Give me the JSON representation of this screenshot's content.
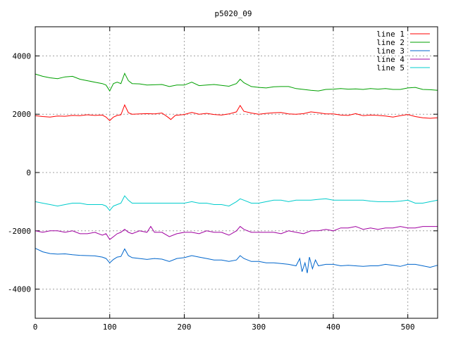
{
  "chart_data": {
    "type": "line",
    "title": "p5020_09",
    "xlabel": "",
    "ylabel": "",
    "xlim": [
      0,
      540
    ],
    "ylim": [
      -5000,
      5000
    ],
    "x_ticks": [
      0,
      100,
      200,
      300,
      400,
      500
    ],
    "y_ticks": [
      -4000,
      -2000,
      0,
      2000,
      4000
    ],
    "grid": true,
    "legend_position": "top-right",
    "series": [
      {
        "name": "line 1",
        "color": "#ff0000",
        "points": [
          [
            0,
            1950
          ],
          [
            10,
            1920
          ],
          [
            20,
            1900
          ],
          [
            30,
            1940
          ],
          [
            40,
            1930
          ],
          [
            50,
            1960
          ],
          [
            60,
            1950
          ],
          [
            70,
            1980
          ],
          [
            80,
            1960
          ],
          [
            90,
            1970
          ],
          [
            95,
            1900
          ],
          [
            100,
            1780
          ],
          [
            105,
            1900
          ],
          [
            110,
            1960
          ],
          [
            115,
            1980
          ],
          [
            120,
            2320
          ],
          [
            125,
            2050
          ],
          [
            130,
            2000
          ],
          [
            140,
            2010
          ],
          [
            150,
            2020
          ],
          [
            160,
            2010
          ],
          [
            170,
            2040
          ],
          [
            178,
            1900
          ],
          [
            182,
            1820
          ],
          [
            188,
            1960
          ],
          [
            200,
            1990
          ],
          [
            210,
            2060
          ],
          [
            220,
            2000
          ],
          [
            230,
            2030
          ],
          [
            240,
            1990
          ],
          [
            250,
            1970
          ],
          [
            260,
            2010
          ],
          [
            270,
            2080
          ],
          [
            275,
            2300
          ],
          [
            280,
            2100
          ],
          [
            290,
            2040
          ],
          [
            300,
            2000
          ],
          [
            310,
            2030
          ],
          [
            320,
            2050
          ],
          [
            330,
            2060
          ],
          [
            340,
            2010
          ],
          [
            350,
            2000
          ],
          [
            360,
            2020
          ],
          [
            370,
            2080
          ],
          [
            380,
            2050
          ],
          [
            390,
            2010
          ],
          [
            400,
            2010
          ],
          [
            410,
            1970
          ],
          [
            420,
            1960
          ],
          [
            430,
            2020
          ],
          [
            440,
            1950
          ],
          [
            450,
            1970
          ],
          [
            460,
            1960
          ],
          [
            470,
            1940
          ],
          [
            480,
            1900
          ],
          [
            490,
            1950
          ],
          [
            500,
            1990
          ],
          [
            510,
            1920
          ],
          [
            520,
            1880
          ],
          [
            530,
            1860
          ],
          [
            540,
            1880
          ]
        ]
      },
      {
        "name": "line 2",
        "color": "#00a000",
        "points": [
          [
            0,
            3380
          ],
          [
            10,
            3300
          ],
          [
            20,
            3250
          ],
          [
            30,
            3220
          ],
          [
            40,
            3280
          ],
          [
            50,
            3300
          ],
          [
            60,
            3200
          ],
          [
            70,
            3150
          ],
          [
            80,
            3100
          ],
          [
            90,
            3050
          ],
          [
            95,
            3000
          ],
          [
            100,
            2800
          ],
          [
            105,
            3050
          ],
          [
            110,
            3100
          ],
          [
            115,
            3050
          ],
          [
            120,
            3400
          ],
          [
            125,
            3150
          ],
          [
            130,
            3050
          ],
          [
            140,
            3040
          ],
          [
            150,
            3000
          ],
          [
            160,
            3010
          ],
          [
            170,
            3020
          ],
          [
            180,
            2950
          ],
          [
            190,
            3000
          ],
          [
            200,
            3000
          ],
          [
            210,
            3100
          ],
          [
            220,
            2980
          ],
          [
            230,
            3000
          ],
          [
            240,
            3020
          ],
          [
            250,
            2990
          ],
          [
            260,
            2960
          ],
          [
            270,
            3050
          ],
          [
            275,
            3200
          ],
          [
            280,
            3080
          ],
          [
            290,
            2950
          ],
          [
            300,
            2920
          ],
          [
            310,
            2900
          ],
          [
            320,
            2940
          ],
          [
            330,
            2950
          ],
          [
            340,
            2950
          ],
          [
            350,
            2880
          ],
          [
            360,
            2850
          ],
          [
            370,
            2820
          ],
          [
            380,
            2800
          ],
          [
            390,
            2850
          ],
          [
            400,
            2860
          ],
          [
            410,
            2880
          ],
          [
            420,
            2860
          ],
          [
            430,
            2870
          ],
          [
            440,
            2850
          ],
          [
            450,
            2880
          ],
          [
            460,
            2860
          ],
          [
            470,
            2880
          ],
          [
            480,
            2850
          ],
          [
            490,
            2850
          ],
          [
            500,
            2900
          ],
          [
            510,
            2920
          ],
          [
            520,
            2850
          ],
          [
            530,
            2840
          ],
          [
            540,
            2820
          ]
        ]
      },
      {
        "name": "line 3",
        "color": "#0066cc",
        "points": [
          [
            0,
            -2600
          ],
          [
            10,
            -2720
          ],
          [
            20,
            -2780
          ],
          [
            30,
            -2800
          ],
          [
            40,
            -2790
          ],
          [
            50,
            -2820
          ],
          [
            60,
            -2840
          ],
          [
            70,
            -2850
          ],
          [
            80,
            -2860
          ],
          [
            90,
            -2900
          ],
          [
            95,
            -2950
          ],
          [
            100,
            -3100
          ],
          [
            105,
            -2980
          ],
          [
            110,
            -2900
          ],
          [
            115,
            -2880
          ],
          [
            120,
            -2620
          ],
          [
            125,
            -2850
          ],
          [
            130,
            -2920
          ],
          [
            140,
            -2950
          ],
          [
            150,
            -2980
          ],
          [
            160,
            -2950
          ],
          [
            170,
            -2970
          ],
          [
            180,
            -3050
          ],
          [
            190,
            -2950
          ],
          [
            200,
            -2920
          ],
          [
            210,
            -2850
          ],
          [
            220,
            -2900
          ],
          [
            230,
            -2950
          ],
          [
            240,
            -3000
          ],
          [
            250,
            -3000
          ],
          [
            260,
            -3050
          ],
          [
            270,
            -3000
          ],
          [
            275,
            -2850
          ],
          [
            280,
            -2950
          ],
          [
            290,
            -3050
          ],
          [
            300,
            -3050
          ],
          [
            310,
            -3100
          ],
          [
            320,
            -3100
          ],
          [
            330,
            -3120
          ],
          [
            340,
            -3150
          ],
          [
            350,
            -3200
          ],
          [
            355,
            -2950
          ],
          [
            358,
            -3400
          ],
          [
            362,
            -3100
          ],
          [
            365,
            -3450
          ],
          [
            368,
            -2900
          ],
          [
            372,
            -3300
          ],
          [
            376,
            -3000
          ],
          [
            380,
            -3200
          ],
          [
            390,
            -3150
          ],
          [
            400,
            -3150
          ],
          [
            410,
            -3200
          ],
          [
            420,
            -3180
          ],
          [
            430,
            -3200
          ],
          [
            440,
            -3220
          ],
          [
            450,
            -3200
          ],
          [
            460,
            -3200
          ],
          [
            470,
            -3150
          ],
          [
            480,
            -3180
          ],
          [
            490,
            -3220
          ],
          [
            500,
            -3150
          ],
          [
            510,
            -3150
          ],
          [
            520,
            -3200
          ],
          [
            530,
            -3250
          ],
          [
            540,
            -3180
          ]
        ]
      },
      {
        "name": "line 4",
        "color": "#a000a0",
        "points": [
          [
            0,
            -2000
          ],
          [
            10,
            -2050
          ],
          [
            20,
            -2000
          ],
          [
            30,
            -2000
          ],
          [
            40,
            -2050
          ],
          [
            50,
            -2000
          ],
          [
            60,
            -2100
          ],
          [
            70,
            -2100
          ],
          [
            80,
            -2050
          ],
          [
            90,
            -2150
          ],
          [
            95,
            -2100
          ],
          [
            100,
            -2300
          ],
          [
            105,
            -2200
          ],
          [
            110,
            -2100
          ],
          [
            115,
            -2050
          ],
          [
            120,
            -1950
          ],
          [
            125,
            -2050
          ],
          [
            130,
            -2100
          ],
          [
            140,
            -2000
          ],
          [
            150,
            -2050
          ],
          [
            155,
            -1850
          ],
          [
            160,
            -2050
          ],
          [
            170,
            -2050
          ],
          [
            180,
            -2200
          ],
          [
            190,
            -2100
          ],
          [
            200,
            -2050
          ],
          [
            210,
            -2050
          ],
          [
            220,
            -2100
          ],
          [
            230,
            -2000
          ],
          [
            240,
            -2050
          ],
          [
            250,
            -2050
          ],
          [
            260,
            -2150
          ],
          [
            270,
            -2000
          ],
          [
            275,
            -1850
          ],
          [
            280,
            -1950
          ],
          [
            290,
            -2050
          ],
          [
            300,
            -2050
          ],
          [
            310,
            -2050
          ],
          [
            320,
            -2050
          ],
          [
            330,
            -2100
          ],
          [
            340,
            -2000
          ],
          [
            350,
            -2050
          ],
          [
            360,
            -2100
          ],
          [
            370,
            -2000
          ],
          [
            380,
            -2000
          ],
          [
            390,
            -1950
          ],
          [
            400,
            -2000
          ],
          [
            410,
            -1900
          ],
          [
            420,
            -1900
          ],
          [
            430,
            -1850
          ],
          [
            440,
            -1950
          ],
          [
            450,
            -1900
          ],
          [
            460,
            -1950
          ],
          [
            470,
            -1900
          ],
          [
            480,
            -1900
          ],
          [
            490,
            -1850
          ],
          [
            500,
            -1900
          ],
          [
            510,
            -1900
          ],
          [
            520,
            -1850
          ],
          [
            530,
            -1850
          ],
          [
            540,
            -1850
          ]
        ]
      },
      {
        "name": "line 5",
        "color": "#00cccc",
        "points": [
          [
            0,
            -1000
          ],
          [
            10,
            -1050
          ],
          [
            20,
            -1100
          ],
          [
            30,
            -1150
          ],
          [
            40,
            -1100
          ],
          [
            50,
            -1050
          ],
          [
            60,
            -1050
          ],
          [
            70,
            -1100
          ],
          [
            80,
            -1100
          ],
          [
            90,
            -1100
          ],
          [
            95,
            -1150
          ],
          [
            100,
            -1300
          ],
          [
            105,
            -1150
          ],
          [
            110,
            -1100
          ],
          [
            115,
            -1050
          ],
          [
            120,
            -800
          ],
          [
            125,
            -950
          ],
          [
            130,
            -1050
          ],
          [
            140,
            -1050
          ],
          [
            150,
            -1050
          ],
          [
            160,
            -1050
          ],
          [
            170,
            -1050
          ],
          [
            180,
            -1050
          ],
          [
            190,
            -1050
          ],
          [
            200,
            -1050
          ],
          [
            210,
            -1000
          ],
          [
            220,
            -1050
          ],
          [
            230,
            -1050
          ],
          [
            240,
            -1100
          ],
          [
            250,
            -1100
          ],
          [
            260,
            -1150
          ],
          [
            270,
            -1000
          ],
          [
            275,
            -900
          ],
          [
            280,
            -950
          ],
          [
            290,
            -1050
          ],
          [
            300,
            -1050
          ],
          [
            310,
            -1000
          ],
          [
            320,
            -950
          ],
          [
            330,
            -950
          ],
          [
            340,
            -1000
          ],
          [
            350,
            -950
          ],
          [
            360,
            -950
          ],
          [
            370,
            -950
          ],
          [
            380,
            -920
          ],
          [
            390,
            -900
          ],
          [
            400,
            -950
          ],
          [
            410,
            -950
          ],
          [
            420,
            -950
          ],
          [
            430,
            -950
          ],
          [
            440,
            -950
          ],
          [
            450,
            -980
          ],
          [
            460,
            -1000
          ],
          [
            470,
            -1000
          ],
          [
            480,
            -1000
          ],
          [
            490,
            -980
          ],
          [
            500,
            -950
          ],
          [
            510,
            -1050
          ],
          [
            520,
            -1050
          ],
          [
            530,
            -1000
          ],
          [
            540,
            -950
          ]
        ]
      }
    ]
  }
}
